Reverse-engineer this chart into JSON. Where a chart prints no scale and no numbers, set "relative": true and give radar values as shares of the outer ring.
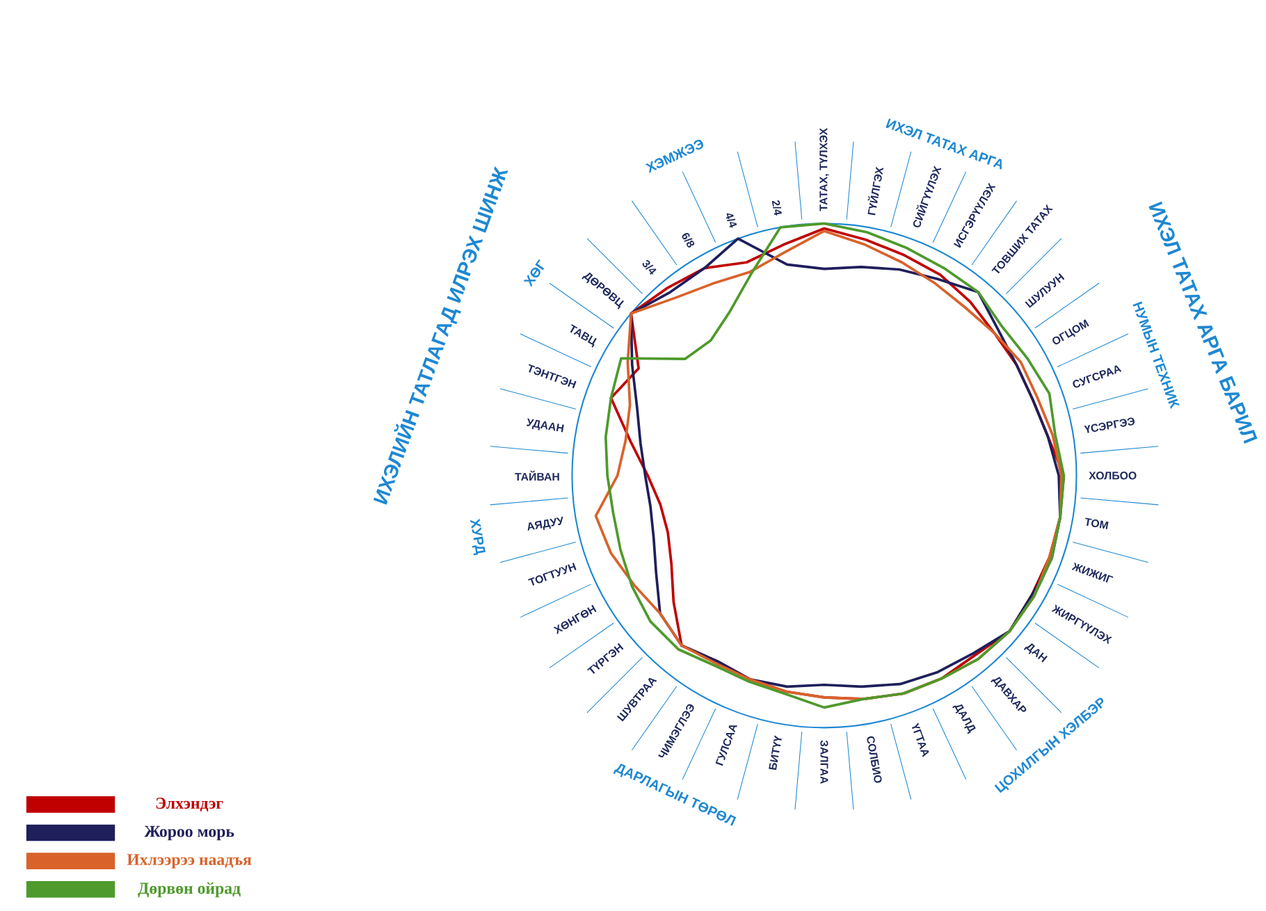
{
  "chart_data": {
    "type": "radar",
    "relative": true,
    "legend": "bottom left",
    "categories": [
      "ТАТАХ, ТҮЛХЭХ",
      "ГҮЙЛГЭХ",
      "СИЙГҮҮЛЭХ",
      "ИСГЭРҮҮЛЭХ",
      "ТОВШИХ ТАТАХ",
      "ШУЛУУН",
      "ОГЦОМ",
      "СУГСРАА",
      "ҮСЭРГЭЭ",
      "ХОЛБОО",
      "ТОМ",
      "ЖИЖИГ",
      "ЖИРГҮҮЛЭХ",
      "ДАН",
      "ДАВХАР",
      "ДАЛД",
      "ҮГТАА",
      "СОЛБИО",
      "ЗАЛГАА",
      "БИТҮҮ",
      "ГУЛСАА",
      "ЧИМЭГЛЭЭ",
      "ШУВТРАА",
      "ТҮРГЭН",
      "ХӨНГӨН",
      "ТОГТУУН",
      "АЯДУУ",
      "ТАЙВАН",
      "УДААН",
      "ТЭНТГЭН",
      "ТАВЦ",
      "ДӨРӨВЦ",
      "3/4",
      "6/8",
      "4/4",
      "2/4"
    ],
    "series": [
      {
        "name": "Элхэндэг",
        "color": "#c00000",
        "values": [
          0.98,
          0.95,
          0.93,
          0.92,
          0.9,
          0.88,
          0.88,
          0.88,
          0.9,
          0.95,
          0.95,
          0.95,
          0.95,
          0.96,
          0.93,
          0.93,
          0.92,
          0.9,
          0.88,
          0.87,
          0.86,
          0.85,
          0.88,
          0.78,
          0.7,
          0.66,
          0.66,
          0.7,
          0.78,
          0.9,
          0.85,
          1.0,
          0.97,
          0.95,
          0.9,
          0.93
        ]
      },
      {
        "name": "Жороо морь",
        "color": "#1f1f5c",
        "values": [
          0.82,
          0.84,
          0.87,
          0.9,
          0.95,
          0.9,
          0.88,
          0.88,
          0.9,
          0.93,
          0.95,
          0.96,
          0.95,
          0.96,
          0.92,
          0.9,
          0.88,
          0.85,
          0.83,
          0.85,
          0.86,
          0.85,
          0.88,
          0.85,
          0.77,
          0.72,
          0.7,
          0.71,
          0.74,
          0.79,
          0.88,
          1.0,
          0.95,
          0.95,
          1.0,
          0.85
        ]
      },
      {
        "name": "Ихлээрээ наадъя",
        "color": "#d9622b",
        "values": [
          0.97,
          0.93,
          0.9,
          0.88,
          0.87,
          0.88,
          0.9,
          0.9,
          0.92,
          0.94,
          0.95,
          0.95,
          0.96,
          0.96,
          0.95,
          0.93,
          0.92,
          0.9,
          0.88,
          0.87,
          0.86,
          0.86,
          0.88,
          0.85,
          0.87,
          0.9,
          0.92,
          0.82,
          0.8,
          0.82,
          0.9,
          1.0,
          0.92,
          0.88,
          0.86,
          0.9
        ]
      },
      {
        "name": "Дөрвөн ойрад",
        "color": "#4e9a2c",
        "values": [
          1.0,
          0.98,
          0.96,
          0.95,
          0.95,
          0.92,
          0.93,
          0.95,
          0.93,
          0.95,
          0.95,
          0.96,
          0.96,
          0.96,
          0.95,
          0.93,
          0.92,
          0.9,
          0.92,
          0.88,
          0.87,
          0.87,
          0.9,
          0.9,
          0.88,
          0.86,
          0.85,
          0.86,
          0.88,
          0.9,
          0.93,
          0.72,
          0.7,
          0.75,
          0.85,
          1.0
        ]
      }
    ],
    "annotations": [
      "ИХЭЛ ТАТАХ АРГА БАРИЛ",
      "ИХЭЛИЙН ТАТЛАГАД ИЛРЭХ ШИНЖ",
      "ИХЭЛ ТАТАХ АРГА",
      "НУМЫН ТЕХНИК",
      "ЦОХИЛГЫН ХЭЛБЭР",
      "ДАРЛАГЫН ТӨРӨЛ",
      "ХУРД",
      "ХӨГ",
      "ХЭМЖЭЭ"
    ]
  }
}
